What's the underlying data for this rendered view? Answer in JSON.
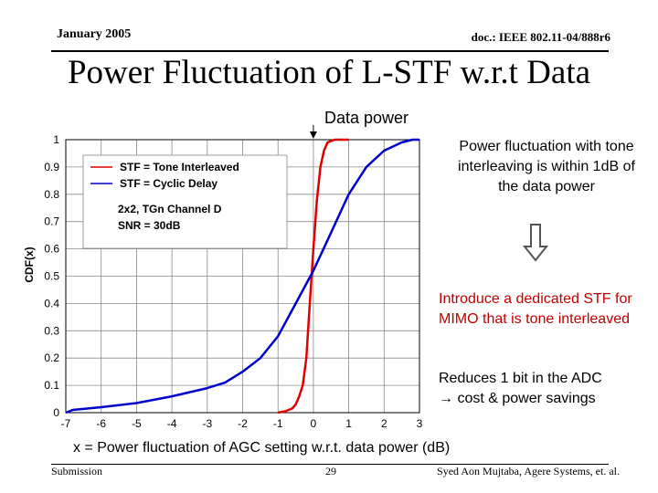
{
  "header": {
    "date": "January 2005",
    "doc_id": "doc.: IEEE 802.11-04/888r6"
  },
  "title": "Power Fluctuation of L-STF w.r.t Data",
  "annotations": {
    "data_power": "Data power",
    "fluctuation_note": "Power fluctuation with tone interleaving is within 1dB of the data power",
    "arrow_icon": "down-arrow-icon",
    "introduce_note": "Introduce a dedicated STF for MIMO that is tone interleaved",
    "reduces_note": "Reduces 1 bit in the ADC",
    "cost_note": "cost & power savings",
    "colors": {
      "introduce": "#c00000"
    }
  },
  "footer": {
    "left": "Submission",
    "page": "29",
    "right": "Syed Aon Mujtaba, Agere Systems, et. al."
  },
  "chart_data": {
    "type": "line",
    "title": "",
    "xlabel": "x = Power fluctuation of AGC setting w.r.t. data power (dB)",
    "ylabel": "CDF(x)",
    "xlim": [
      -7,
      3
    ],
    "ylim": [
      0,
      1
    ],
    "x_ticks": [
      "-7",
      "-6",
      "-5",
      "-4",
      "-3",
      "-2",
      "-1",
      "0",
      "1",
      "2",
      "3"
    ],
    "y_ticks": [
      "0",
      "0.1",
      "0.2",
      "0.3",
      "0.4",
      "0.5",
      "0.6",
      "0.7",
      "0.8",
      "0.9",
      "1"
    ],
    "grid": true,
    "legend": {
      "placement": "top-left",
      "entries": [
        "STF = Tone Interleaved",
        "STF = Cyclic Delay"
      ],
      "caption_lines": [
        "2x2, TGn Channel D",
        "SNR = 30dB"
      ]
    },
    "series": [
      {
        "name": "STF = Tone Interleaved",
        "color": "#e00000",
        "points": [
          [
            -1.0,
            0.0
          ],
          [
            -0.8,
            0.005
          ],
          [
            -0.6,
            0.015
          ],
          [
            -0.5,
            0.03
          ],
          [
            -0.4,
            0.06
          ],
          [
            -0.3,
            0.1
          ],
          [
            -0.2,
            0.2
          ],
          [
            -0.1,
            0.4
          ],
          [
            0.0,
            0.6
          ],
          [
            0.1,
            0.78
          ],
          [
            0.2,
            0.9
          ],
          [
            0.3,
            0.96
          ],
          [
            0.4,
            0.99
          ],
          [
            0.6,
            1.0
          ],
          [
            1.0,
            1.0
          ]
        ]
      },
      {
        "name": "STF = Cyclic Delay",
        "color": "#0000cc",
        "points": [
          [
            -7.0,
            0.0
          ],
          [
            -6.8,
            0.01
          ],
          [
            -6.0,
            0.02
          ],
          [
            -5.0,
            0.035
          ],
          [
            -4.0,
            0.06
          ],
          [
            -3.0,
            0.09
          ],
          [
            -2.5,
            0.11
          ],
          [
            -2.0,
            0.15
          ],
          [
            -1.5,
            0.2
          ],
          [
            -1.0,
            0.28
          ],
          [
            -0.5,
            0.4
          ],
          [
            0.0,
            0.52
          ],
          [
            0.5,
            0.66
          ],
          [
            1.0,
            0.8
          ],
          [
            1.5,
            0.9
          ],
          [
            2.0,
            0.96
          ],
          [
            2.5,
            0.99
          ],
          [
            2.8,
            1.0
          ],
          [
            3.0,
            1.0
          ]
        ]
      }
    ]
  }
}
